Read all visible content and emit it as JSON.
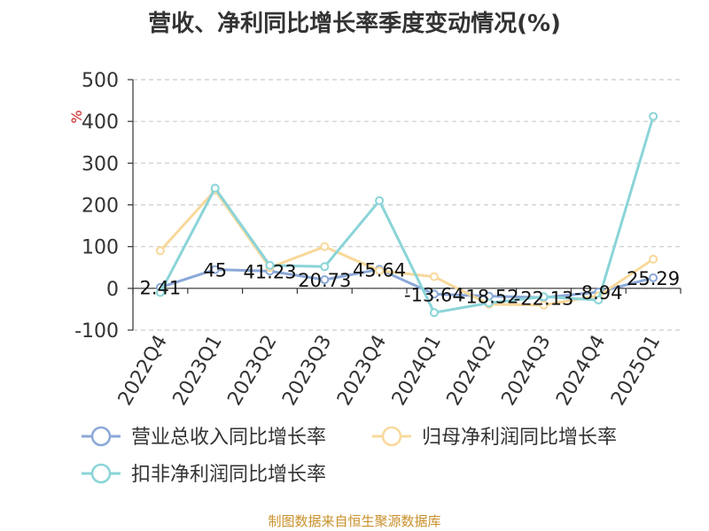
{
  "chart_data": {
    "type": "line",
    "title": "营收、净利同比增长率季度变动情况(%)",
    "ylabel": "%",
    "ylim": [
      -100,
      500
    ],
    "yticks": [
      "-100",
      "0",
      "100",
      "200",
      "300",
      "400",
      "500"
    ],
    "ytick_values": [
      -100,
      0,
      100,
      200,
      300,
      400,
      500
    ],
    "grid": true,
    "legend_position": "bottom",
    "categories": [
      "2022Q4",
      "2023Q1",
      "2023Q2",
      "2023Q3",
      "2023Q4",
      "2024Q1",
      "2024Q2",
      "2024Q3",
      "2024Q4",
      "2025Q1"
    ],
    "series": [
      {
        "name": "营业总收入同比增长率",
        "color": "#8aa8d8",
        "values": [
          2.41,
          45,
          41.23,
          20.73,
          45.64,
          -13.64,
          -18.52,
          -22.13,
          -8.94,
          25.29
        ],
        "labels": [
          "2.41",
          "45",
          "41.23",
          "20.73",
          "45.64",
          "-13.64",
          "-18.52",
          "-22.13",
          "-8.94",
          "25.29"
        ]
      },
      {
        "name": "归母净利润同比增长率",
        "color": "#f8d89a",
        "values": [
          90,
          235,
          50,
          100,
          42,
          28,
          -38,
          -40,
          -18,
          70
        ]
      },
      {
        "name": "扣非净利润同比增长率",
        "color": "#8ad4d8",
        "values": [
          -10,
          240,
          55,
          52,
          210,
          -58,
          -35,
          -20,
          -28,
          412
        ]
      }
    ]
  },
  "source": "制图数据来自恒生聚源数据库"
}
